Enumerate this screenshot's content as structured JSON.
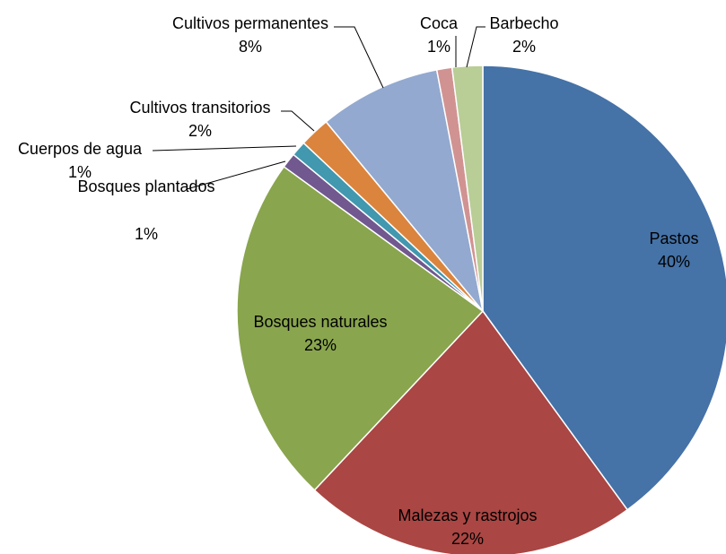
{
  "chart_data": {
    "type": "pie",
    "title": "",
    "start_angle_deg": 0,
    "direction": "clockwise",
    "slices": [
      {
        "name": "Pastos",
        "value": 40,
        "label": "40%",
        "color": "#4572A7"
      },
      {
        "name": "Malezas y rastrojos",
        "value": 22,
        "label": "22%",
        "color": "#AA4643"
      },
      {
        "name": "Bosques naturales",
        "value": 23,
        "label": "23%",
        "color": "#89A54E"
      },
      {
        "name": "Bosques plantados",
        "value": 1,
        "label": "1%",
        "color": "#71588F"
      },
      {
        "name": "Cuerpos de agua",
        "value": 1,
        "label": "1%",
        "color": "#4198AF"
      },
      {
        "name": "Cultivos transitorios",
        "value": 2,
        "label": "2%",
        "color": "#DB843D"
      },
      {
        "name": "Cultivos permanentes",
        "value": 8,
        "label": "8%",
        "color": "#93A9CF"
      },
      {
        "name": "Coca",
        "value": 1,
        "label": "1%",
        "color": "#D19392"
      },
      {
        "name": "Barbecho",
        "value": 2,
        "label": "2%",
        "color": "#B9CD96"
      }
    ]
  }
}
